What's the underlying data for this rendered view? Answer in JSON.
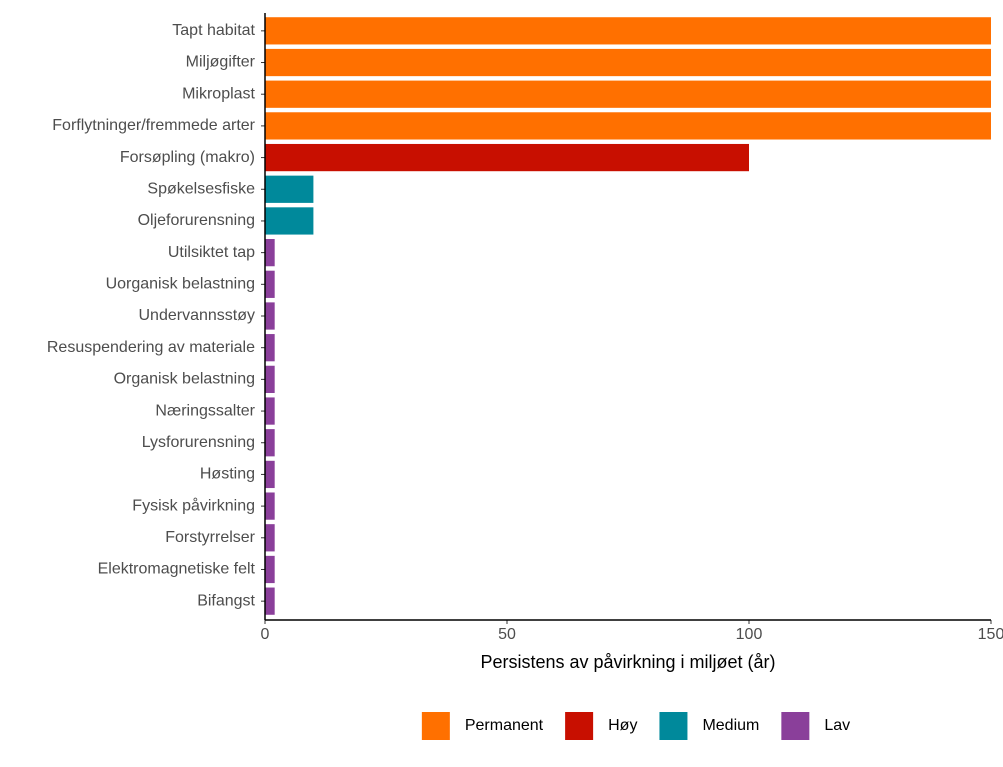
{
  "chart_data": {
    "type": "bar",
    "orientation": "horizontal",
    "categories": [
      "Tapt habitat",
      "Miljøgifter",
      "Mikroplast",
      "Forflytninger/fremmede arter",
      "Forsøpling (makro)",
      "Spøkelsesfiske",
      "Oljeforurensning",
      "Utilsiktet tap",
      "Uorganisk belastning",
      "Undervannsstøy",
      "Resuspendering av materiale",
      "Organisk belastning",
      "Næringssalter",
      "Lysforurensning",
      "Høsting",
      "Fysisk påvirkning",
      "Forstyrrelser",
      "Elektromagnetiske felt",
      "Bifangst"
    ],
    "series": [
      {
        "name": "Permanent",
        "color": "#ff7000",
        "values": [
          150,
          150,
          150,
          150,
          null,
          null,
          null,
          null,
          null,
          null,
          null,
          null,
          null,
          null,
          null,
          null,
          null,
          null,
          null
        ]
      },
      {
        "name": "Høy",
        "color": "#c80f00",
        "values": [
          null,
          null,
          null,
          null,
          100,
          null,
          null,
          null,
          null,
          null,
          null,
          null,
          null,
          null,
          null,
          null,
          null,
          null,
          null
        ]
      },
      {
        "name": "Medium",
        "color": "#00899b",
        "values": [
          null,
          null,
          null,
          null,
          null,
          10,
          10,
          null,
          null,
          null,
          null,
          null,
          null,
          null,
          null,
          null,
          null,
          null,
          null
        ]
      },
      {
        "name": "Lav",
        "color": "#8a3f9a",
        "values": [
          null,
          null,
          null,
          null,
          null,
          null,
          null,
          2,
          2,
          2,
          2,
          2,
          2,
          2,
          2,
          2,
          2,
          2,
          2
        ]
      }
    ],
    "x_label": "Persistens av påvirkning i miljøet (år)",
    "xlim": [
      0,
      150
    ],
    "xticks": [
      0,
      50,
      100,
      150
    ],
    "legend": "bottom"
  }
}
